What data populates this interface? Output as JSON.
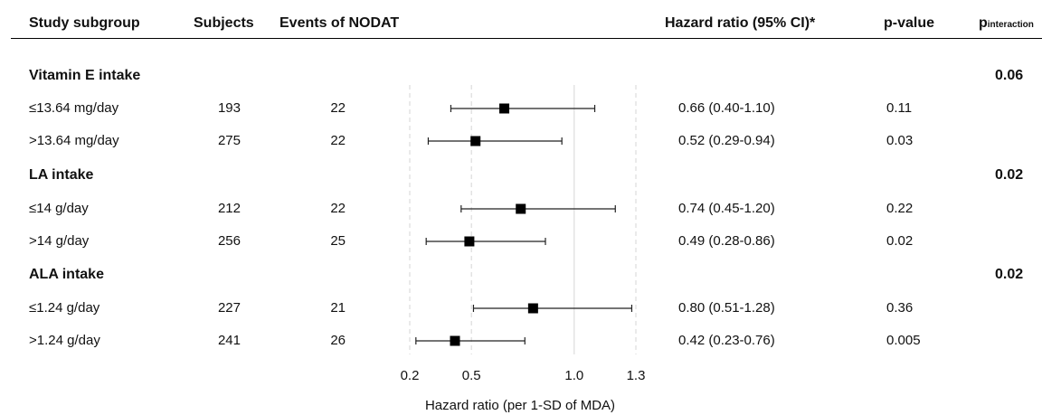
{
  "headers": {
    "subgroup": "Study subgroup",
    "subjects": "Subjects",
    "events": "Events of NODAT",
    "hr": "Hazard ratio (95% CI)*",
    "pvalue": "p-value",
    "pint_main": "p",
    "pint_sub": "interaction"
  },
  "groups": [
    {
      "label": "Vitamin E intake",
      "p_interaction": "0.06",
      "rows": [
        {
          "label": "≤13.64 mg/day",
          "subjects": "193",
          "events": "22",
          "hr_text": "0.66 (0.40-1.10)",
          "p": "0.11"
        },
        {
          "label": ">13.64 mg/day",
          "subjects": "275",
          "events": "22",
          "hr_text": "0.52 (0.29-0.94)",
          "p": "0.03"
        }
      ]
    },
    {
      "label": "LA intake",
      "p_interaction": "0.02",
      "rows": [
        {
          "label": "≤14 g/day",
          "subjects": "212",
          "events": "22",
          "hr_text": "0.74 (0.45-1.20)",
          "p": "0.22"
        },
        {
          "label": ">14 g/day",
          "subjects": "256",
          "events": "25",
          "hr_text": "0.49 (0.28-0.86)",
          "p": "0.02"
        }
      ]
    },
    {
      "label": "ALA intake",
      "p_interaction": "0.02",
      "rows": [
        {
          "label": "≤1.24 g/day",
          "subjects": "227",
          "events": "21",
          "hr_text": "0.80 (0.51-1.28)",
          "p": "0.36"
        },
        {
          "label": ">1.24 g/day",
          "subjects": "241",
          "events": "26",
          "hr_text": "0.42 (0.23-0.76)",
          "p": "0.005"
        }
      ]
    }
  ],
  "chart_data": {
    "type": "forest",
    "xlabel": "Hazard ratio (per 1-SD of MDA)",
    "xticks": [
      0.2,
      0.5,
      1.0,
      1.3
    ],
    "xtick_labels": [
      "0.2",
      "0.5",
      "1.0",
      "1.3"
    ],
    "xlim": [
      0.2,
      1.3
    ],
    "reference_line": 1.0,
    "points": [
      {
        "label": "≤13.64 mg/day",
        "hr": 0.66,
        "lo": 0.4,
        "hi": 1.1
      },
      {
        "label": ">13.64 mg/day",
        "hr": 0.52,
        "lo": 0.29,
        "hi": 0.94
      },
      {
        "label": "≤14 g/day",
        "hr": 0.74,
        "lo": 0.45,
        "hi": 1.2
      },
      {
        "label": ">14 g/day",
        "hr": 0.49,
        "lo": 0.28,
        "hi": 0.86
      },
      {
        "label": "≤1.24 g/day",
        "hr": 0.8,
        "lo": 0.51,
        "hi": 1.28
      },
      {
        "label": ">1.24 g/day",
        "hr": 0.42,
        "lo": 0.23,
        "hi": 0.76
      }
    ]
  }
}
